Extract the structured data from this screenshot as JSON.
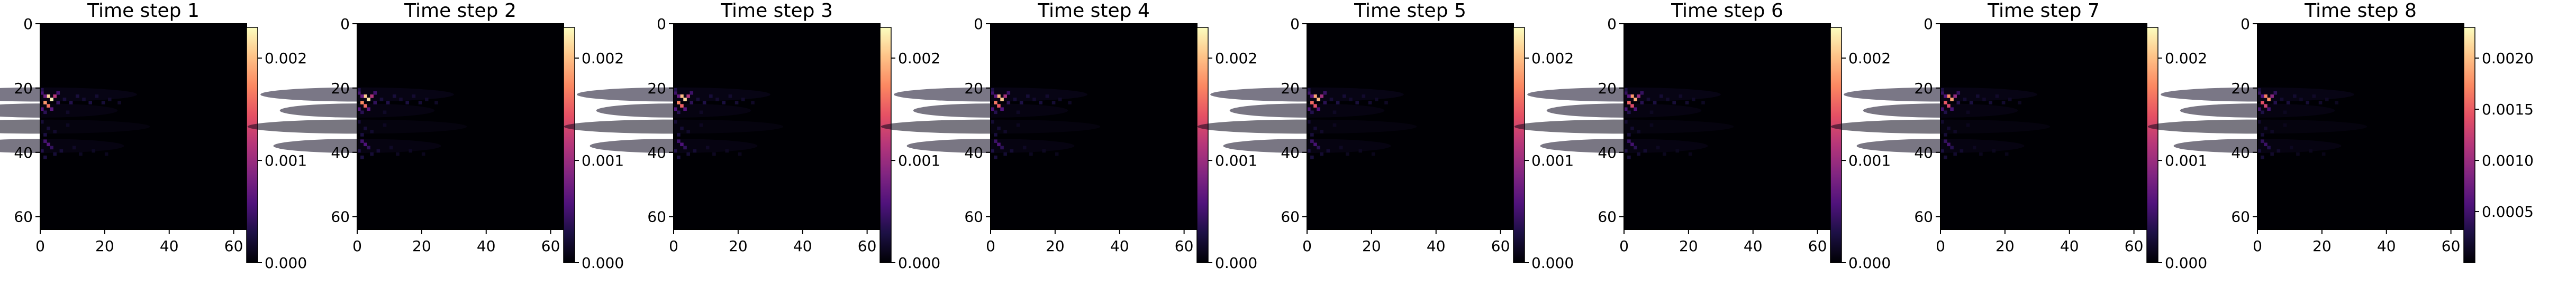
{
  "chart_data": [
    {
      "type": "heatmap",
      "title": "Time step 1",
      "colormap": "magma",
      "xlim": [
        0,
        64
      ],
      "ylim": [
        64,
        0
      ],
      "x_ticks": [
        "0",
        "20",
        "40",
        "60"
      ],
      "y_ticks": [
        "0",
        "20",
        "40",
        "60"
      ],
      "colorbar_ticks": [
        "0.002",
        "0.001",
        "0.000"
      ],
      "vmax_approx": 0.0023
    },
    {
      "type": "heatmap",
      "title": "Time step 2",
      "colormap": "magma",
      "xlim": [
        0,
        64
      ],
      "ylim": [
        64,
        0
      ],
      "x_ticks": [
        "0",
        "20",
        "40",
        "60"
      ],
      "y_ticks": [
        "0",
        "20",
        "40",
        "60"
      ],
      "colorbar_ticks": [
        "0.002",
        "0.001",
        "0.000"
      ],
      "vmax_approx": 0.0023
    },
    {
      "type": "heatmap",
      "title": "Time step 3",
      "colormap": "magma",
      "xlim": [
        0,
        64
      ],
      "ylim": [
        64,
        0
      ],
      "x_ticks": [
        "0",
        "20",
        "40",
        "60"
      ],
      "y_ticks": [
        "0",
        "20",
        "40",
        "60"
      ],
      "colorbar_ticks": [
        "0.002",
        "0.001",
        "0.000"
      ],
      "vmax_approx": 0.0023
    },
    {
      "type": "heatmap",
      "title": "Time step 4",
      "colormap": "magma",
      "xlim": [
        0,
        64
      ],
      "ylim": [
        64,
        0
      ],
      "x_ticks": [
        "0",
        "20",
        "40",
        "60"
      ],
      "y_ticks": [
        "0",
        "20",
        "40",
        "60"
      ],
      "colorbar_ticks": [
        "0.002",
        "0.001",
        "0.000"
      ],
      "vmax_approx": 0.0023
    },
    {
      "type": "heatmap",
      "title": "Time step 5",
      "colormap": "magma",
      "xlim": [
        0,
        64
      ],
      "ylim": [
        64,
        0
      ],
      "x_ticks": [
        "0",
        "20",
        "40",
        "60"
      ],
      "y_ticks": [
        "0",
        "20",
        "40",
        "60"
      ],
      "colorbar_ticks": [
        "0.002",
        "0.001",
        "0.000"
      ],
      "vmax_approx": 0.0023
    },
    {
      "type": "heatmap",
      "title": "Time step 6",
      "colormap": "magma",
      "xlim": [
        0,
        64
      ],
      "ylim": [
        64,
        0
      ],
      "x_ticks": [
        "0",
        "20",
        "40",
        "60"
      ],
      "y_ticks": [
        "0",
        "20",
        "40",
        "60"
      ],
      "colorbar_ticks": [
        "0.002",
        "0.001",
        "0.000"
      ],
      "vmax_approx": 0.0023
    },
    {
      "type": "heatmap",
      "title": "Time step 7",
      "colormap": "magma",
      "xlim": [
        0,
        64
      ],
      "ylim": [
        64,
        0
      ],
      "x_ticks": [
        "0",
        "20",
        "40",
        "60"
      ],
      "y_ticks": [
        "0",
        "20",
        "40",
        "60"
      ],
      "colorbar_ticks": [
        "0.002",
        "0.001",
        "0.000"
      ],
      "vmax_approx": 0.0023
    },
    {
      "type": "heatmap",
      "title": "Time step 8",
      "colormap": "magma",
      "xlim": [
        0,
        64
      ],
      "ylim": [
        64,
        0
      ],
      "x_ticks": [
        "0",
        "20",
        "40",
        "60"
      ],
      "y_ticks": [
        "0",
        "20",
        "40",
        "60"
      ],
      "colorbar_ticks": [
        "0.0020",
        "0.0015",
        "0.0010",
        "0.0005"
      ],
      "vmax_approx": 0.0023
    }
  ],
  "colors": {
    "background": "#000004",
    "magma_stops": [
      "#000004",
      "#1c1044",
      "#4f127b",
      "#812581",
      "#b5367a",
      "#e55064",
      "#fb8761",
      "#fec287",
      "#fcfdbf"
    ]
  }
}
